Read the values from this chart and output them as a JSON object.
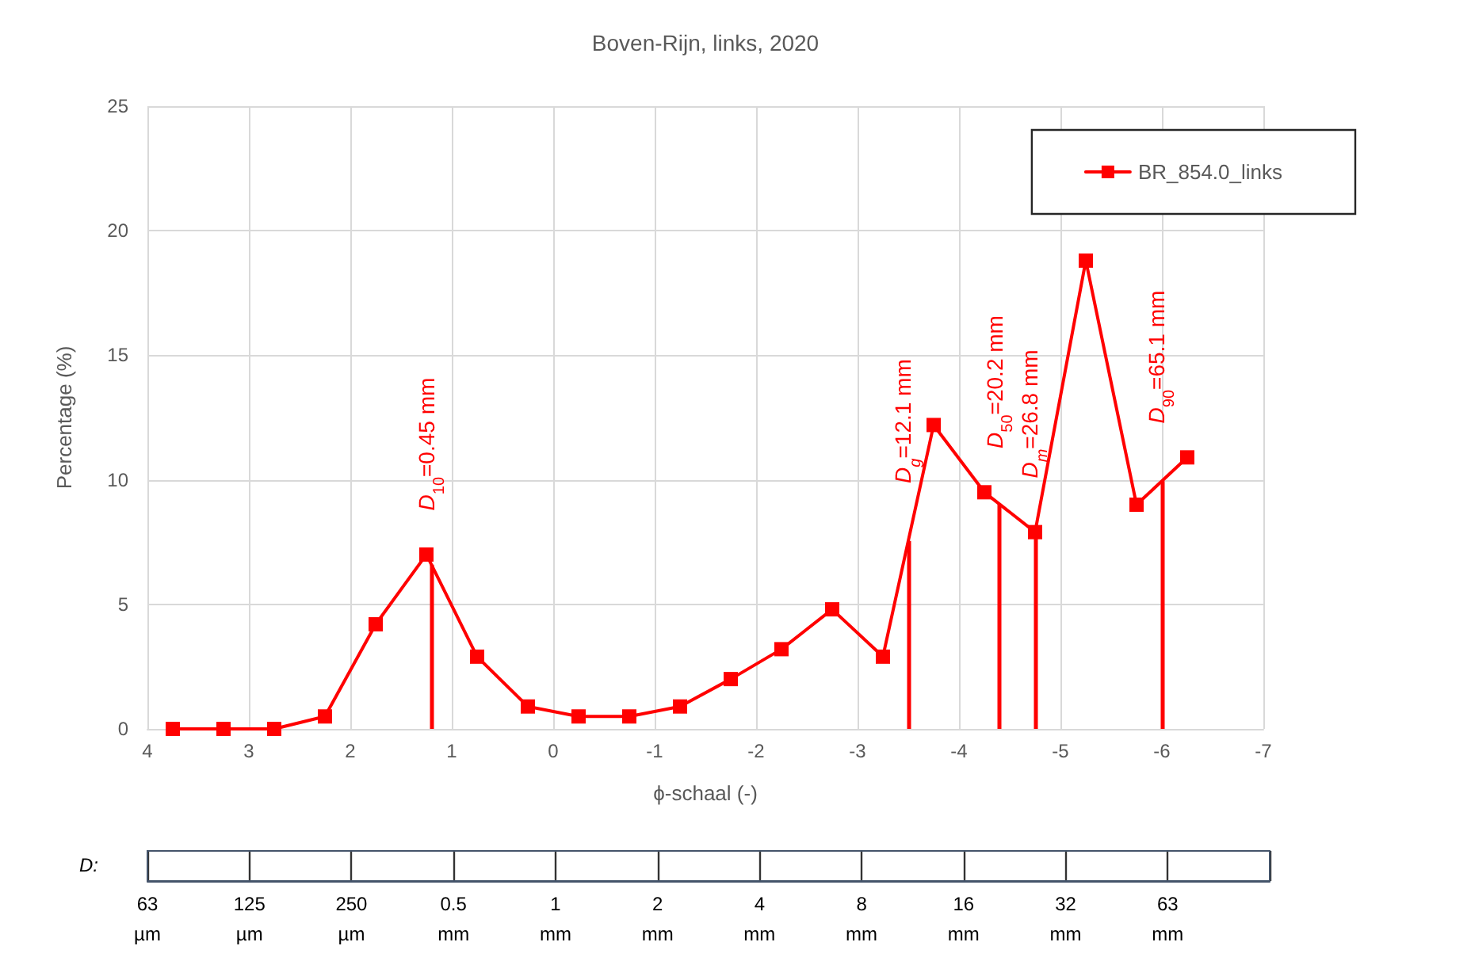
{
  "chart_data": [
    {
      "type": "line",
      "title": "Boven-Rijn, links, 2020",
      "xlabel": "ϕ-schaal (-)",
      "ylabel": "Percentage (%)",
      "x": [
        3.75,
        3.25,
        2.75,
        2.25,
        1.75,
        1.25,
        0.75,
        0.25,
        -0.25,
        -0.75,
        -1.25,
        -1.75,
        -2.25,
        -2.75,
        -3.25,
        -3.75,
        -4.25,
        -4.75,
        -5.25,
        -5.75,
        -6.25
      ],
      "series": [
        {
          "name": "BR_854.0_links",
          "color": "#ff0000",
          "values": [
            0,
            0,
            0,
            0.5,
            4.2,
            7.0,
            2.9,
            0.9,
            0.5,
            0.5,
            0.9,
            2.0,
            3.2,
            4.8,
            2.9,
            12.2,
            9.5,
            7.9,
            18.8,
            9.0,
            10.9
          ]
        }
      ],
      "xlim": [
        4,
        -7
      ],
      "xticks": [
        4,
        3,
        2,
        1,
        0,
        -1,
        -2,
        -3,
        -4,
        -5,
        -6,
        -7
      ],
      "ylim": [
        0,
        25
      ],
      "yticks": [
        0,
        5,
        10,
        15,
        20,
        25
      ],
      "ref_lines": [
        {
          "axis": "x",
          "value": 1.2,
          "color": "#ff0000"
        },
        {
          "axis": "x",
          "value": -3.5,
          "color": "#ff0000"
        },
        {
          "axis": "x",
          "value": -4.4,
          "color": "#ff0000"
        },
        {
          "axis": "x",
          "value": -4.75,
          "color": "#ff0000"
        },
        {
          "axis": "x",
          "value": -6.0,
          "color": "#ff0000"
        }
      ],
      "annotations": [
        {
          "text": "D$_{10}$=0.45 mm",
          "x": 1.2,
          "y": 6.6
        },
        {
          "text": "D$_{g}$=12.1 mm",
          "x": -3.5,
          "y": 7.7
        },
        {
          "text": "D$_{50}$=20.2 mm",
          "x": -4.4,
          "y": 9.1
        },
        {
          "text": "D$_{m}$=26.8 mm",
          "x": -4.75,
          "y": 7.9
        },
        {
          "text": "D$_{90}$=65.1 mm",
          "x": -6.0,
          "y": 10.1
        }
      ],
      "grid": true,
      "legend": "top right",
      "marker": "square",
      "line_style": "solid"
    },
    {
      "type": "other",
      "xlabel": "D:",
      "categories": [
        "63 µm",
        "125 µm",
        "250 µm",
        "0.5 mm",
        "1 mm",
        "2 mm",
        "4 mm",
        "8 mm",
        "16 mm",
        "32 mm",
        "63 mm",
        null
      ]
    }
  ]
}
